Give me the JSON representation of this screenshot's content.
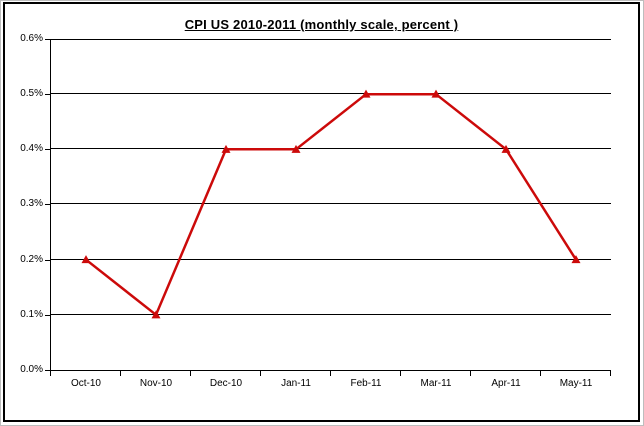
{
  "window": {
    "background": "#ffffff",
    "frame_border_color": "#000000",
    "outer_edge_color": "#bdbdbd"
  },
  "chart_data": {
    "type": "line",
    "title": "CPI US 2010-2011 (monthly scale, percent )",
    "categories": [
      "Oct-10",
      "Nov-10",
      "Dec-10",
      "Jan-11",
      "Feb-11",
      "Mar-11",
      "Apr-11",
      "May-11"
    ],
    "series": [
      {
        "values": [
          0.2,
          0.1,
          0.4,
          0.4,
          0.5,
          0.5,
          0.4,
          0.2
        ],
        "color": "#cc0a0a",
        "marker": "triangle-up",
        "line_width": 2.5
      }
    ],
    "xlabel": "",
    "ylabel": "",
    "ylim": [
      0,
      0.6
    ],
    "ytick_step": 0.1,
    "ytick_labels": [
      "0.0%",
      "0.1%",
      "0.2%",
      "0.3%",
      "0.4%",
      "0.5%",
      "0.6%"
    ],
    "grid": "horizontal",
    "gridline_color": "#000000",
    "axis_color": "#000000",
    "legend": "none",
    "plot_background": "#ffffff"
  }
}
